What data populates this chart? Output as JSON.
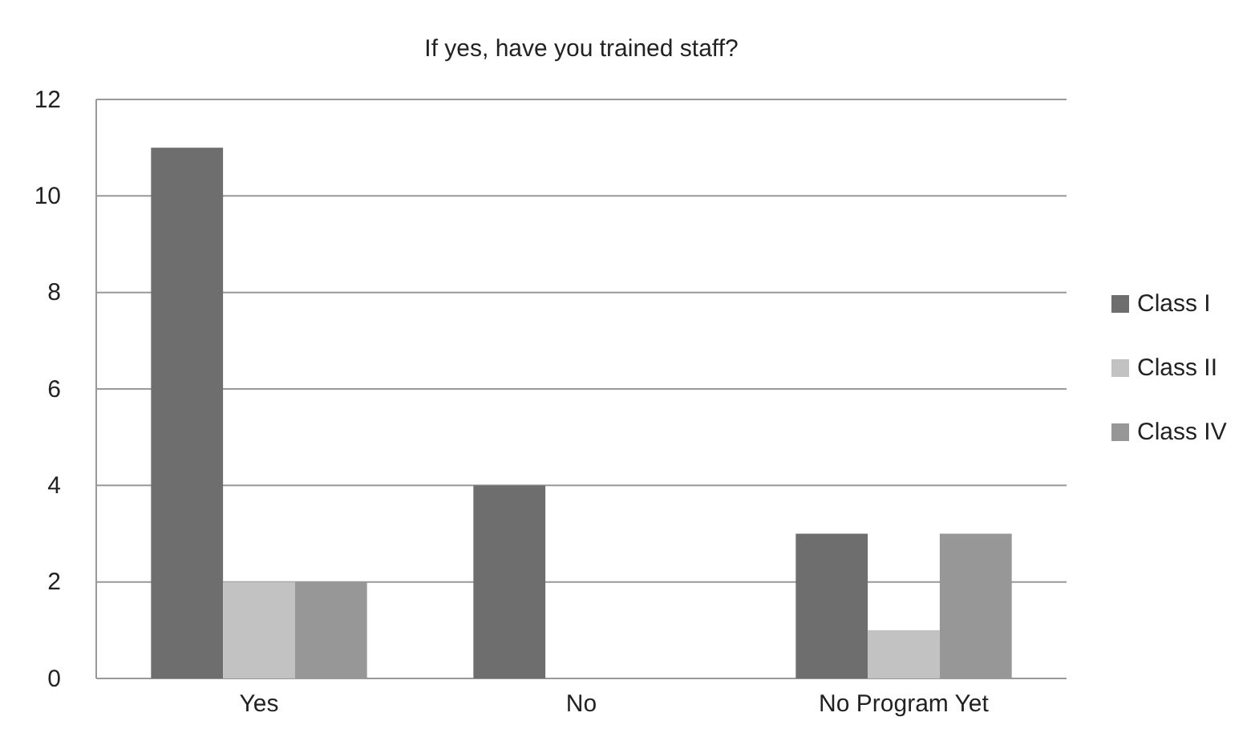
{
  "chart_data": {
    "type": "bar",
    "title": "If yes, have you trained staff?",
    "categories": [
      "Yes",
      "No",
      "No Program Yet"
    ],
    "series": [
      {
        "name": "Class I",
        "color": "#6e6e6e",
        "values": [
          11,
          4,
          3
        ]
      },
      {
        "name": "Class II",
        "color": "#c2c2c2",
        "values": [
          2,
          0,
          1
        ]
      },
      {
        "name": "Class IV",
        "color": "#979797",
        "values": [
          2,
          0,
          3
        ]
      }
    ],
    "ylim": [
      0,
      12
    ],
    "yticks": [
      0,
      2,
      4,
      6,
      8,
      10,
      12
    ],
    "grid": "y",
    "legend": "right"
  }
}
